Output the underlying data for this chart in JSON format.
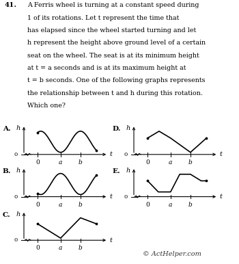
{
  "background": "#ffffff",
  "text_color": "#000000",
  "watermark": "© ActHelper.com",
  "problem_number": "41.",
  "problem_lines": [
    "A Ferris wheel is turning at a constant speed during",
    "1 of its rotations. Let t represent the time that",
    "has elapsed since the wheel started turning and let",
    "h represent the height above ground level of a certain",
    "seat on the wheel. The seat is at its minimum height",
    "at t = a seconds and is at its maximum height at",
    "t = b seconds. One of the following graphs represents",
    "the relationship between t and h during this rotation.",
    "Which one?"
  ],
  "graphs": {
    "A": {
      "type": "sine_min_a_max_b"
    },
    "B": {
      "type": "sine_max_before_a_min_b"
    },
    "C": {
      "type": "v_min_a_max_b"
    },
    "D": {
      "type": "invV_max_before_a_min_b"
    },
    "E": {
      "type": "trapezoid_low_a_high_b"
    }
  }
}
